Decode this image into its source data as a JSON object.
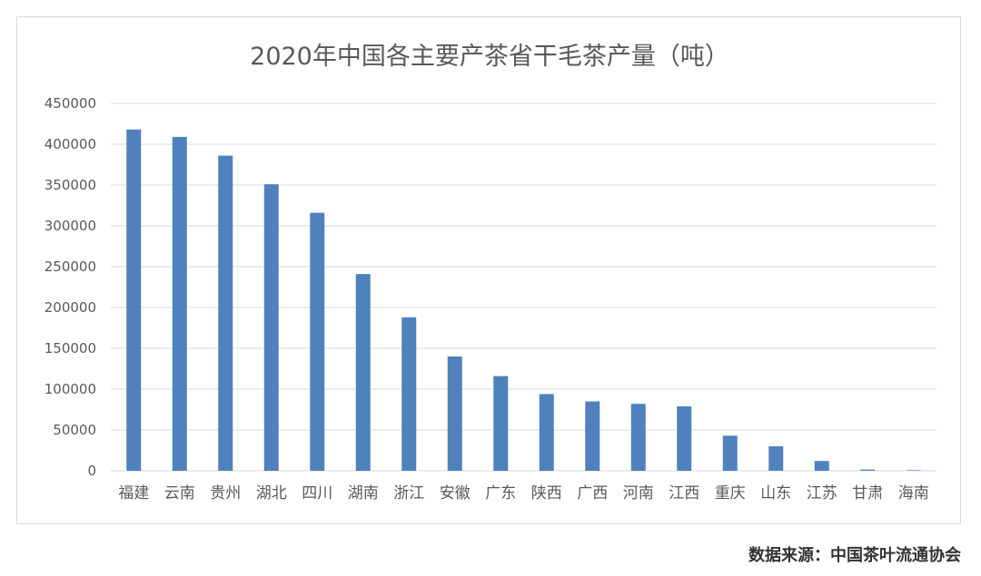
{
  "chart_data": {
    "type": "bar",
    "title": "2020年中国各主要产茶省干毛茶产量（吨）",
    "xlabel": "",
    "ylabel": "",
    "categories": [
      "福建",
      "云南",
      "贵州",
      "湖北",
      "四川",
      "湖南",
      "浙江",
      "安徽",
      "广东",
      "陕西",
      "广西",
      "河南",
      "江西",
      "重庆",
      "山东",
      "江苏",
      "甘肃",
      "海南"
    ],
    "values": [
      418000,
      409000,
      386000,
      351000,
      316000,
      241000,
      188000,
      140000,
      116000,
      94000,
      85000,
      82000,
      79000,
      43000,
      30000,
      12000,
      1500,
      700
    ],
    "ylim": [
      0,
      450000
    ],
    "yticks": [
      "0",
      "50000",
      "100000",
      "150000",
      "200000",
      "250000",
      "300000",
      "350000",
      "400000",
      "450000"
    ],
    "ytick_values": [
      0,
      50000,
      100000,
      150000,
      200000,
      250000,
      300000,
      350000,
      400000,
      450000
    ],
    "grid": true,
    "legend": "none",
    "bar_color": "#4f81bd",
    "grid_color": "#d9d9d9"
  },
  "source_note": "数据来源：中国茶叶流通协会"
}
